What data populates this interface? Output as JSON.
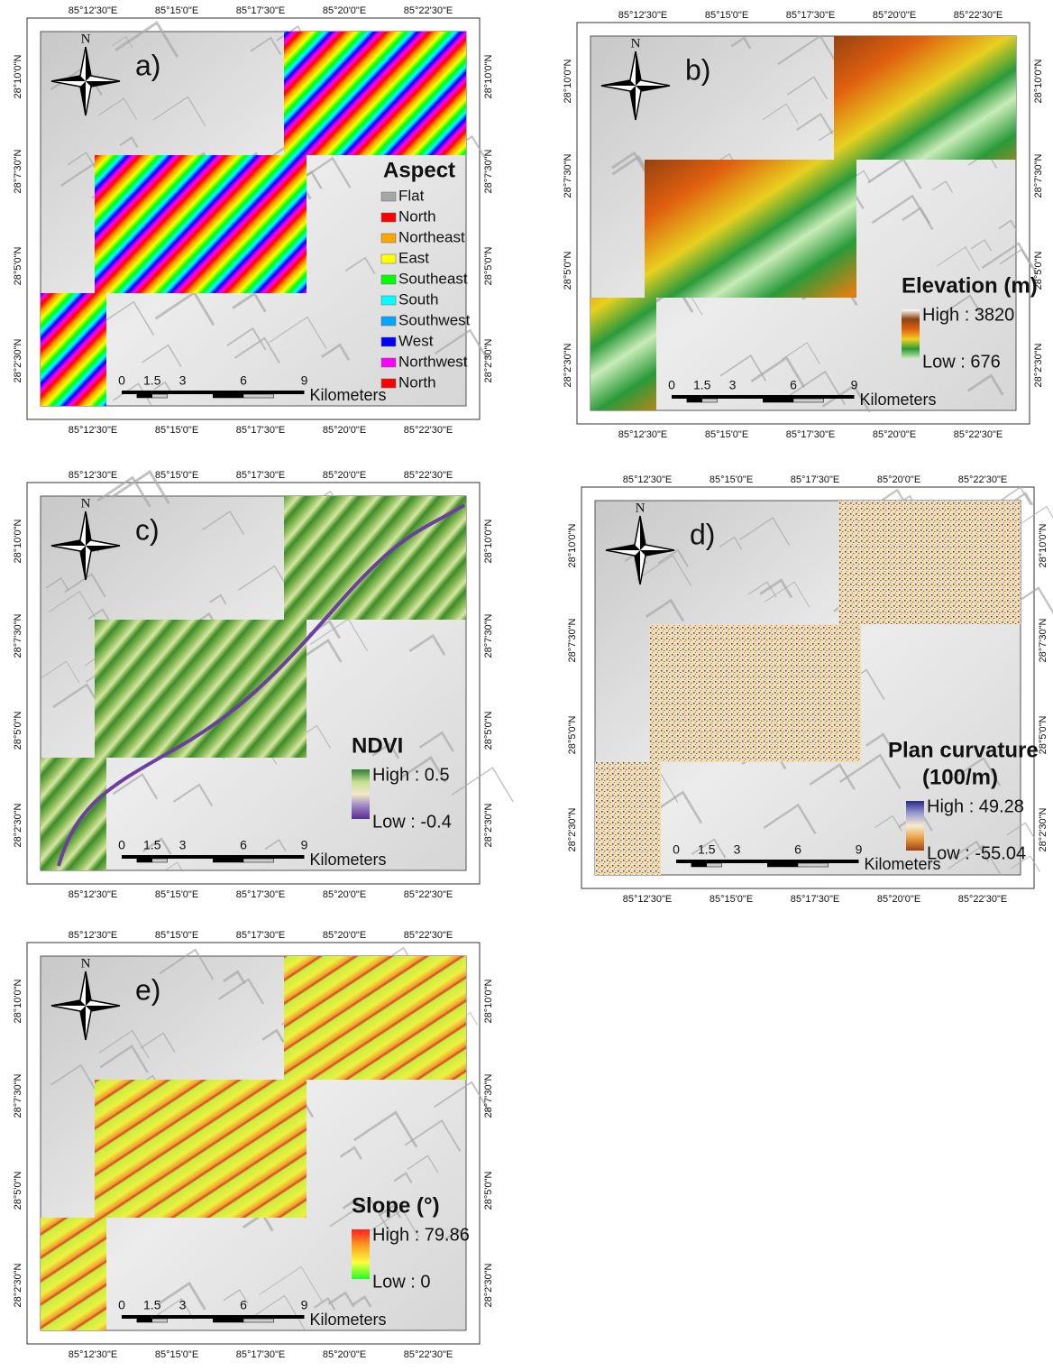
{
  "lon_labels": [
    "85°12'30\"E",
    "85°15'0\"E",
    "85°17'30\"E",
    "85°20'0\"E",
    "85°22'30\"E"
  ],
  "lat_labels": [
    "28°10'0\"N",
    "28°7'30\"N",
    "28°5'0\"N",
    "28°2'30\"N"
  ],
  "north": "N",
  "scale": {
    "ticks": [
      0,
      1.5,
      3,
      6,
      9
    ],
    "unit": "Kilometers"
  },
  "panels": [
    {
      "label": "a)",
      "legend": {
        "title": "Aspect",
        "items": [
          {
            "name": "Flat",
            "color": "#a6a6a6"
          },
          {
            "name": "North",
            "color": "#ff0000"
          },
          {
            "name": "Northeast",
            "color": "#ffa500"
          },
          {
            "name": "East",
            "color": "#ffff00"
          },
          {
            "name": "Southeast",
            "color": "#00ff00"
          },
          {
            "name": "South",
            "color": "#00ffff"
          },
          {
            "name": "Southwest",
            "color": "#00a6ff"
          },
          {
            "name": "West",
            "color": "#0000ff"
          },
          {
            "name": "Northwest",
            "color": "#ff00ff"
          },
          {
            "name": "North",
            "color": "#ff0000"
          }
        ]
      }
    },
    {
      "label": "b)",
      "legend": {
        "title": "Elevation (m)",
        "high": "High : 3820",
        "low": "Low : 676",
        "colors": [
          "#ffffff",
          "#8b4513",
          "#e06010",
          "#f0d020",
          "#2a9a3a",
          "#d8f0c0"
        ]
      }
    },
    {
      "label": "c)",
      "legend": {
        "title": "NDVI",
        "high": "High : 0.5",
        "low": "Low : -0.4",
        "colors": [
          "#2e7d32",
          "#c5dd90",
          "#f2eac8",
          "#9a7fc0",
          "#5a2d91"
        ]
      }
    },
    {
      "label": "d)",
      "legend": {
        "title": "Plan curvature",
        "subtitle": "(100/m)",
        "high": "High : 49.28",
        "low": "Low : -55.04",
        "colors": [
          "#2b2a8a",
          "#9a9ad0",
          "#f8ecd0",
          "#e8a040",
          "#a04010"
        ]
      }
    },
    {
      "label": "e)",
      "legend": {
        "title": "Slope (°)",
        "high": "High : 79.86",
        "low": "Low : 0",
        "colors": [
          "#ff2020",
          "#ffa020",
          "#ffff40",
          "#20ff20"
        ]
      }
    }
  ]
}
